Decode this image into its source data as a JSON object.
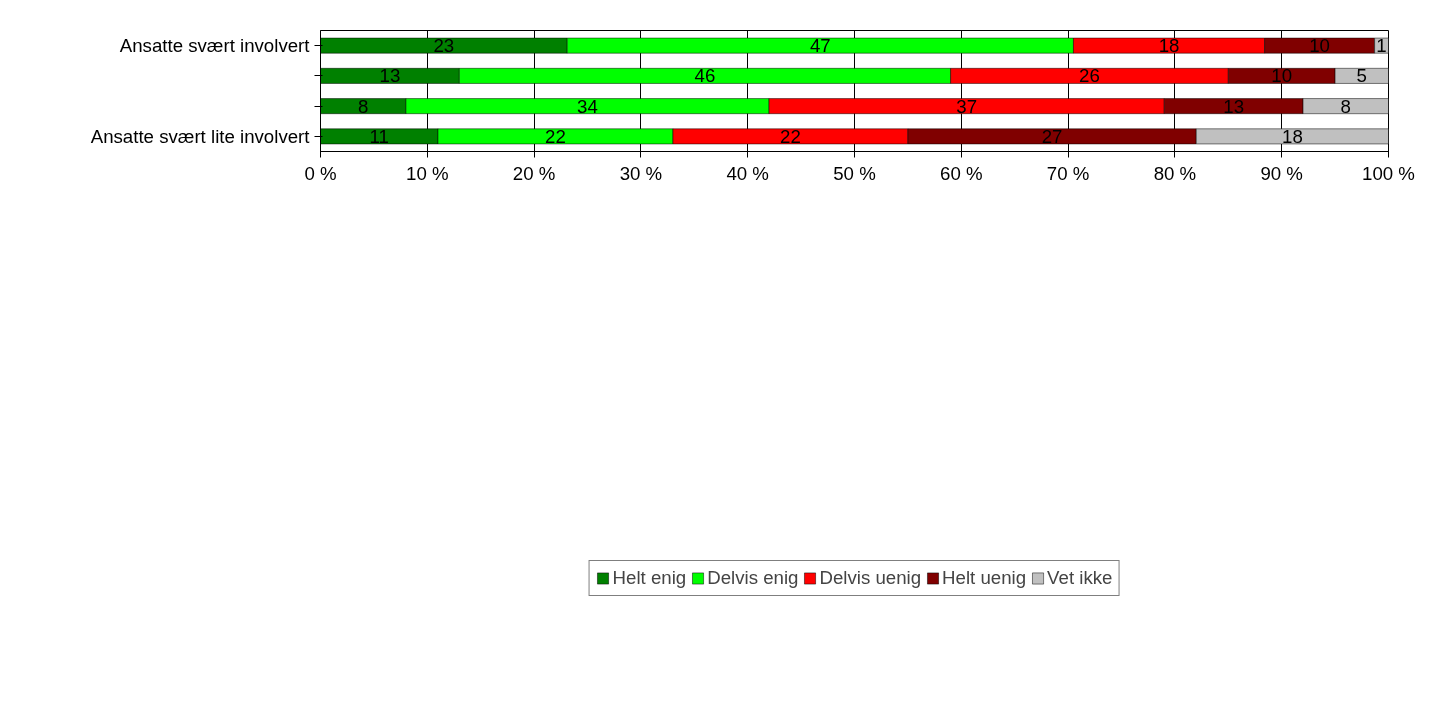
{
  "chart_data": {
    "type": "bar",
    "orientation": "horizontal",
    "stacked": true,
    "categories": [
      "Ansatte svært involvert",
      null,
      null,
      "Ansatte svært lite involvert"
    ],
    "series": [
      {
        "name": "Helt enig",
        "color": "#008000",
        "values": [
          23.1,
          13,
          8,
          11
        ],
        "value_labels": [
          "23",
          "13",
          "8",
          "11"
        ]
      },
      {
        "name": "Delvis enig",
        "color": "#00ff00",
        "values": [
          47.4,
          46,
          34,
          22
        ],
        "value_labels": [
          "47",
          "46",
          "34",
          "22"
        ]
      },
      {
        "name": "Delvis uenig",
        "color": "#ff0000",
        "values": [
          17.9,
          26,
          37,
          22
        ],
        "value_labels": [
          "18",
          "26",
          "37",
          "22"
        ]
      },
      {
        "name": "Helt uenig",
        "color": "#800000",
        "values": [
          10.3,
          10,
          13,
          27
        ],
        "value_labels": [
          "10",
          "10",
          "13",
          "27"
        ]
      },
      {
        "name": "Vet ikke",
        "color": "#c0c0c0",
        "values": [
          1.3,
          5,
          8,
          18
        ],
        "value_labels": [
          "1",
          "5",
          "8",
          "18"
        ]
      }
    ],
    "xlim": [
      0,
      100
    ],
    "xticks": [
      {
        "value": 0,
        "label": "0 %"
      },
      {
        "value": 10,
        "label": "10 %"
      },
      {
        "value": 20,
        "label": "20 %"
      },
      {
        "value": 30,
        "label": "30 %"
      },
      {
        "value": 40,
        "label": "40 %"
      },
      {
        "value": 50,
        "label": "50 %"
      },
      {
        "value": 60,
        "label": "60 %"
      },
      {
        "value": 70,
        "label": "70 %"
      },
      {
        "value": 80,
        "label": "80 %"
      },
      {
        "value": 90,
        "label": "90 %"
      },
      {
        "value": 100,
        "label": "100 %"
      }
    ],
    "grid": "x",
    "legend": "bottom"
  }
}
